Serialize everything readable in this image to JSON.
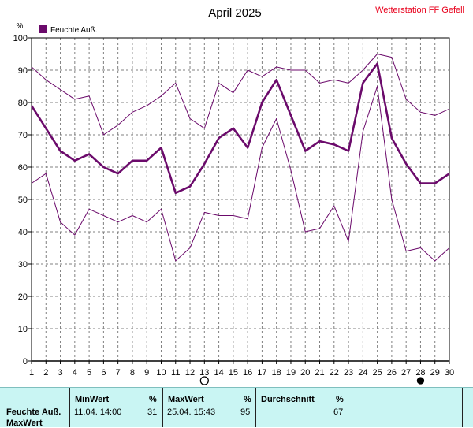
{
  "chart_data": {
    "type": "line",
    "title": "April 2025",
    "station": "Wetterstation FF Gefell",
    "ylabel": "%",
    "ylim": [
      0,
      100
    ],
    "ytick_step": 10,
    "grid": true,
    "legend_placement": "top-left",
    "x": [
      1,
      2,
      3,
      4,
      5,
      6,
      7,
      8,
      9,
      10,
      11,
      12,
      13,
      14,
      15,
      16,
      17,
      18,
      19,
      20,
      21,
      22,
      23,
      24,
      25,
      26,
      27,
      28,
      29,
      30
    ],
    "xlim": [
      1,
      30
    ],
    "series": [
      {
        "name": "Feuchte Auß.",
        "role": "mean",
        "values": [
          79,
          72,
          65,
          62,
          64,
          60,
          58,
          62,
          62,
          66,
          52,
          54,
          61,
          69,
          72,
          66,
          80,
          87,
          76,
          65,
          68,
          67,
          65,
          86,
          92,
          69,
          61,
          55,
          55,
          58
        ]
      },
      {
        "name": "",
        "role": "max",
        "values": [
          91,
          87,
          84,
          81,
          82,
          70,
          73,
          77,
          79,
          82,
          86,
          75,
          72,
          86,
          83,
          90,
          88,
          91,
          90,
          90,
          86,
          87,
          86,
          90,
          95,
          94,
          81,
          77,
          76,
          78
        ]
      },
      {
        "name": "",
        "role": "min",
        "values": [
          55,
          58,
          43,
          39,
          47,
          45,
          43,
          45,
          43,
          47,
          31,
          35,
          46,
          45,
          45,
          44,
          66,
          75,
          59,
          40,
          41,
          48,
          37,
          71,
          85,
          50,
          34,
          35,
          31,
          35
        ]
      }
    ],
    "markers": [
      {
        "day": 13,
        "symbol": "open-circle"
      },
      {
        "day": 28,
        "symbol": "filled-circle"
      }
    ],
    "colors": {
      "line": "#6b0a6b",
      "legend_box": "#6b0a6b",
      "grid": "#808080",
      "station": "#e8001c",
      "stats_bg": "#c9f5f3"
    }
  },
  "stats": {
    "min_header": "MinWert",
    "max_header": "MaxWert",
    "avg_header": "Durchschnitt",
    "unit": "%",
    "row_label": "Feuchte Auß.",
    "row_label2": "MaxWert",
    "min_datetime": "11.04.  14:00",
    "min_value": "31",
    "max_datetime": "25.04.  15:43",
    "max_value": "95",
    "avg_value": "67"
  }
}
